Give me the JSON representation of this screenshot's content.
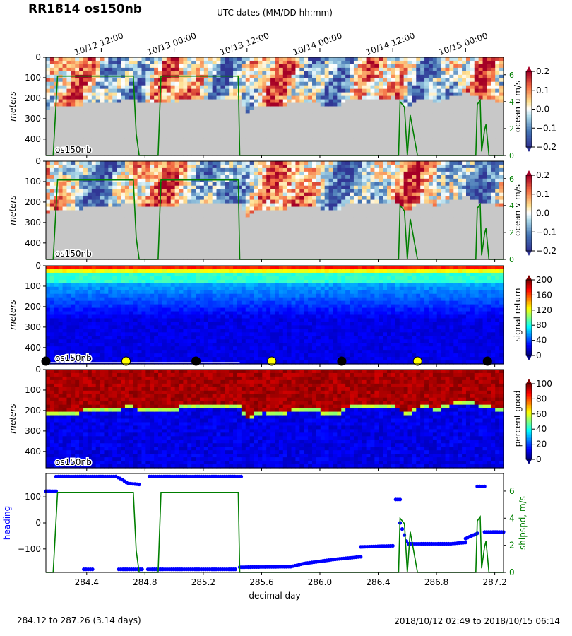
{
  "title": "RR1814 os150nb",
  "top_axis_label": "UTC dates (MM/DD hh:mm)",
  "top_ticks": [
    "10/12 12:00",
    "10/13 00:00",
    "10/13 12:00",
    "10/14 00:00",
    "10/14 12:00",
    "10/15 00:00"
  ],
  "footer_left": "284.12 to 287.26 (3.14 days)",
  "footer_right": "2018/10/12 02:49 to 2018/10/15 06:14",
  "colors": {
    "ship_speed": "#007f00",
    "heading": "#0000ff",
    "bathy": "#c8c8c8"
  },
  "chart_data": {
    "type": "heatmap",
    "x_axis": {
      "label": "decimal day",
      "range": [
        284.12,
        287.26
      ],
      "ticks": [
        284.4,
        284.8,
        285.2,
        285.6,
        286.0,
        286.4,
        286.8,
        287.2
      ]
    },
    "depth_axis": {
      "label": "meters",
      "range": [
        0,
        480
      ],
      "ticks": [
        0,
        100,
        200,
        300,
        400
      ]
    },
    "panels": [
      {
        "id": "u",
        "tag": "os150nb",
        "colorbar_label": "ocean u m/s",
        "colorbar_ticks": [
          "0.2",
          "0.1",
          "0.0",
          "−0.1",
          "−0.2"
        ],
        "colormap": "diverging",
        "range": [
          -0.2,
          0.2
        ],
        "right_axis_ticks": [
          "0",
          "2",
          "4",
          "6"
        ]
      },
      {
        "id": "v",
        "tag": "os150nb",
        "colorbar_label": "ocean v m/s",
        "colorbar_ticks": [
          "0.2",
          "0.1",
          "0.0",
          "−0.1",
          "−0.2"
        ],
        "colormap": "diverging",
        "range": [
          -0.2,
          0.2
        ],
        "right_axis_ticks": [
          "0",
          "2",
          "4",
          "6"
        ]
      },
      {
        "id": "amp",
        "tag": "os150nb",
        "colorbar_label": "signal return",
        "colorbar_ticks": [
          "200",
          "160",
          "120",
          "80",
          "40",
          "0"
        ],
        "colormap": "jet",
        "range": [
          0,
          200
        ]
      },
      {
        "id": "pg",
        "tag": "os150nb",
        "colorbar_label": "percent good",
        "colorbar_ticks": [
          "100",
          "80",
          "60",
          "40",
          "20",
          "0"
        ],
        "colormap": "jet",
        "range": [
          0,
          100
        ]
      }
    ],
    "ship_speed": {
      "label": "shipspd, m/s",
      "range": [
        0,
        7.3
      ],
      "ticks": [
        "0",
        "2",
        "4",
        "6"
      ],
      "x": [
        284.12,
        284.17,
        284.2,
        284.72,
        284.74,
        284.76,
        284.89,
        284.91,
        285.44,
        285.45,
        286.54,
        286.55,
        286.58,
        286.6,
        286.62,
        286.67,
        287.07,
        287.08,
        287.1,
        287.11,
        287.13,
        287.14,
        287.16,
        287.26
      ],
      "y": [
        0,
        0,
        5.9,
        5.9,
        1.6,
        0,
        0,
        5.9,
        5.9,
        0,
        0,
        4.0,
        3.6,
        0,
        3.0,
        0,
        0,
        3.8,
        4.1,
        0.3,
        1.9,
        2.3,
        0,
        0
      ]
    },
    "heading": {
      "label": "heading",
      "range": [
        -190,
        190
      ],
      "ticks": [
        "100",
        "0",
        "−100"
      ],
      "segments": [
        {
          "x": [
            284.12,
            284.19
          ],
          "y": [
            122,
            122
          ]
        },
        {
          "x": [
            284.19,
            284.6
          ],
          "y": [
            178,
            178
          ]
        },
        {
          "x": [
            284.6,
            284.64,
            284.68,
            284.76
          ],
          "y": [
            178,
            168,
            152,
            148
          ]
        },
        {
          "x": [
            284.83,
            284.9
          ],
          "y": [
            178,
            178
          ]
        },
        {
          "x": [
            284.9,
            285.46
          ],
          "y": [
            178,
            178
          ]
        },
        {
          "x": [
            284.38,
            284.44
          ],
          "y": [
            -178,
            -178
          ]
        },
        {
          "x": [
            284.62,
            284.78
          ],
          "y": [
            -178,
            -178
          ]
        },
        {
          "x": [
            284.82,
            285.42
          ],
          "y": [
            -178,
            -178
          ]
        },
        {
          "x": [
            285.45,
            285.8,
            285.9,
            286.1,
            286.28
          ],
          "y": [
            -170,
            -168,
            -155,
            -140,
            -130
          ]
        },
        {
          "x": [
            286.28,
            286.5
          ],
          "y": [
            -92,
            -88
          ]
        },
        {
          "x": [
            286.52,
            286.55
          ],
          "y": [
            90,
            90
          ]
        },
        {
          "x": [
            286.55,
            286.6,
            286.9,
            287.0
          ],
          "y": [
            0,
            -80,
            -80,
            -75
          ]
        },
        {
          "x": [
            287.0,
            287.08
          ],
          "y": [
            -60,
            -40
          ]
        },
        {
          "x": [
            287.08,
            287.13
          ],
          "y": [
            140,
            140
          ]
        },
        {
          "x": [
            287.13,
            287.26
          ],
          "y": [
            -35,
            -35
          ]
        }
      ],
      "right_axis_ticks": [
        "0",
        "2",
        "4",
        "6"
      ]
    },
    "bottom_depth": {
      "x": [
        284.12,
        284.3,
        284.5,
        284.7,
        284.9,
        285.1,
        285.3,
        285.45,
        285.5,
        285.6,
        285.7,
        285.8,
        285.9,
        286.0,
        286.1,
        286.2,
        286.3,
        286.4,
        286.5,
        286.6,
        286.7,
        286.8,
        286.9,
        287.0,
        287.1,
        287.2,
        287.26
      ],
      "y": [
        250,
        235,
        225,
        210,
        230,
        205,
        200,
        200,
        270,
        230,
        240,
        230,
        220,
        230,
        250,
        210,
        200,
        205,
        195,
        255,
        200,
        220,
        195,
        175,
        200,
        215,
        220
      ]
    },
    "day_markers": {
      "x": [
        284.12,
        284.67,
        285.15,
        285.67,
        286.15,
        286.67,
        287.15
      ],
      "night": [
        true,
        false,
        true,
        false,
        true,
        false,
        true
      ]
    }
  }
}
